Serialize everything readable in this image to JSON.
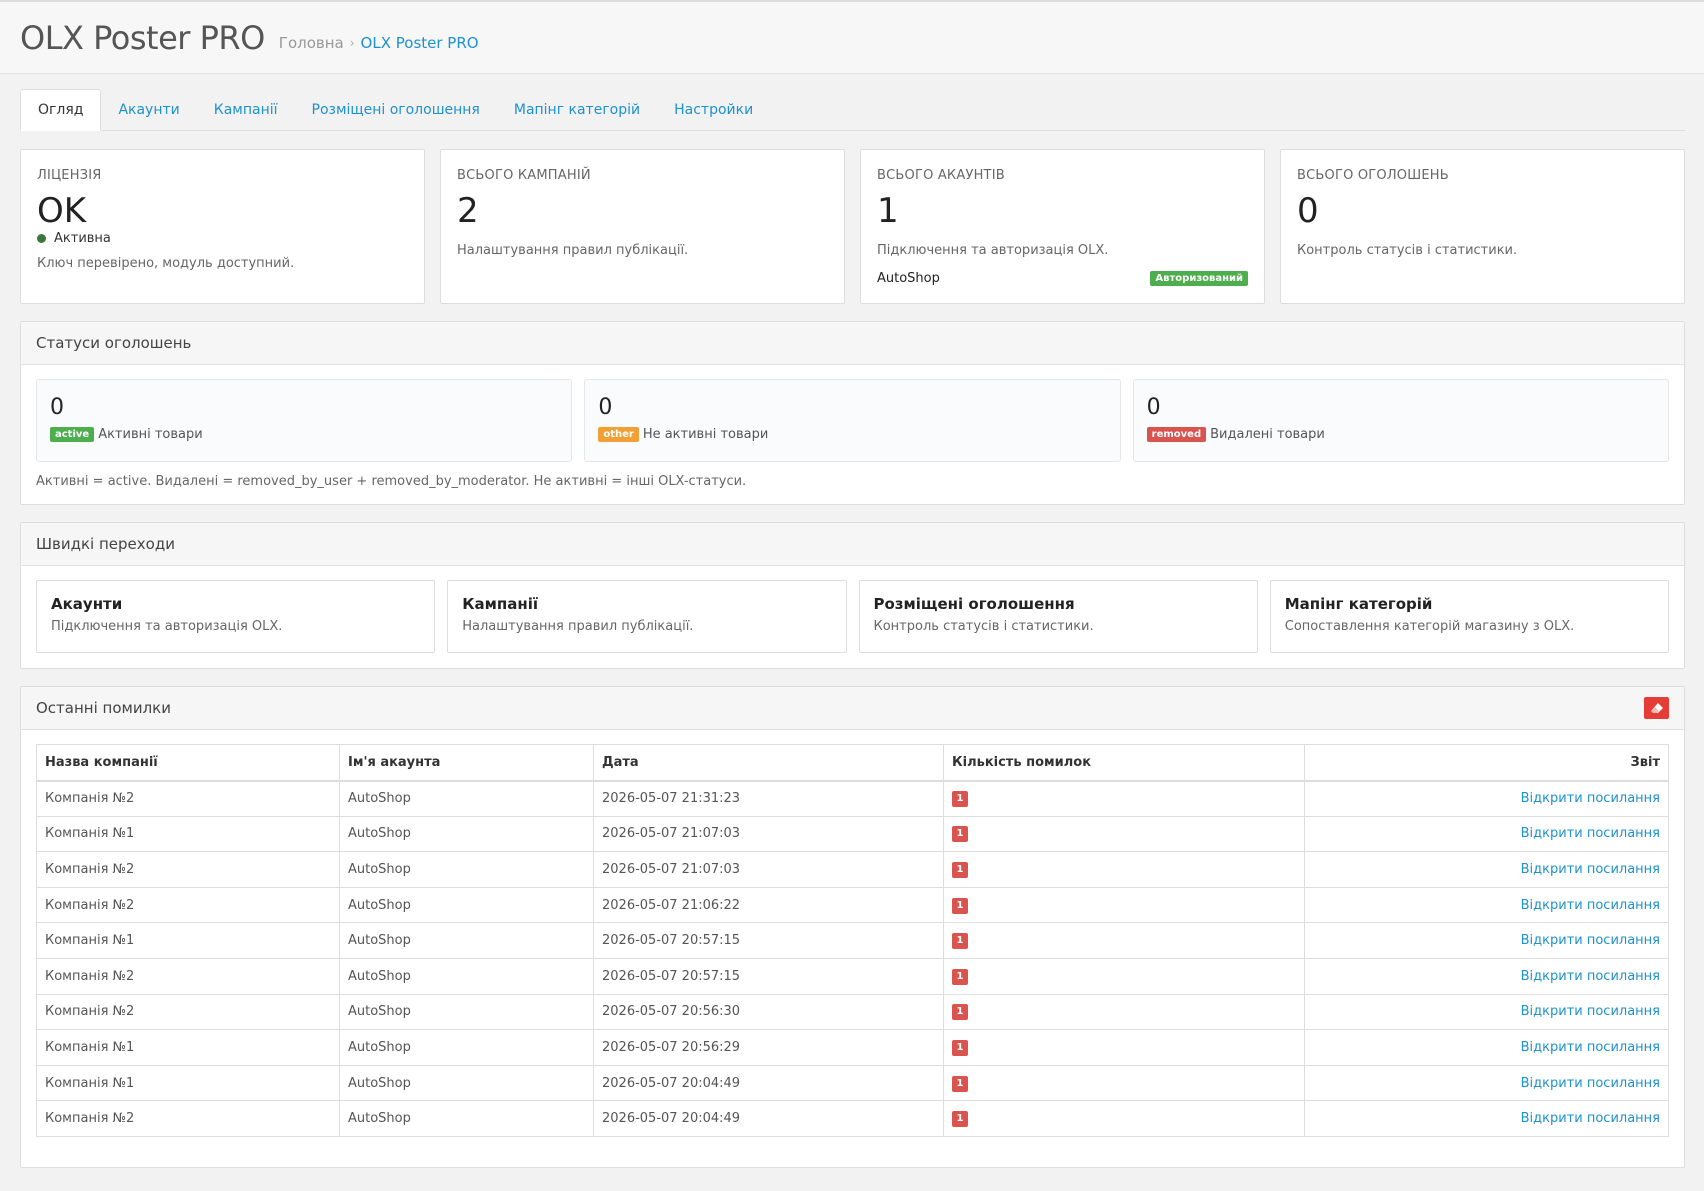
{
  "header": {
    "title": "OLX Poster PRO",
    "breadcrumb": [
      {
        "label": "Головна"
      },
      {
        "label": "OLX Poster PRO"
      }
    ],
    "breadcrumb_sep": "›"
  },
  "tabs": [
    {
      "label": "Огляд",
      "active": true
    },
    {
      "label": "Акаунти"
    },
    {
      "label": "Кампанії"
    },
    {
      "label": "Розміщені оголошення"
    },
    {
      "label": "Мапінг категорій"
    },
    {
      "label": "Настройки"
    }
  ],
  "stats": {
    "license": {
      "label": "Ліцензія",
      "value": "OK",
      "status": "Активна",
      "note": "Ключ перевірено, модуль доступний.",
      "status_color": "#3c763d"
    },
    "campaigns": {
      "label": "Всього кампаній",
      "value": "2",
      "sub": "Налаштування правил публікації."
    },
    "accounts": {
      "label": "Всього акаунтів",
      "value": "1",
      "sub": "Підключення та авторизація OLX.",
      "account_name": "AutoShop",
      "badge": "Авторизований"
    },
    "ads": {
      "label": "Всього оголошень",
      "value": "0",
      "sub": "Контроль статусів і статистики."
    }
  },
  "statuses": {
    "title": "Статуси оголошень",
    "items": [
      {
        "value": "0",
        "badge": "active",
        "label": "Активні товари",
        "color": "#4cae4c"
      },
      {
        "value": "0",
        "badge": "other",
        "label": "Не активні товари",
        "color": "#f0a034"
      },
      {
        "value": "0",
        "badge": "removed",
        "label": "Видалені товари",
        "color": "#d9534f"
      }
    ],
    "note": "Активні = active. Видалені = removed_by_user + removed_by_moderator. Не активні = інші OLX-статуси."
  },
  "quick": {
    "title": "Швидкі переходи",
    "items": [
      {
        "title": "Акаунти",
        "sub": "Підключення та авторизація OLX."
      },
      {
        "title": "Кампанії",
        "sub": "Налаштування правил публікації."
      },
      {
        "title": "Розміщені оголошення",
        "sub": "Контроль статусів і статистики."
      },
      {
        "title": "Мапінг категорій",
        "sub": "Сопоставлення категорій магазину з OLX."
      }
    ]
  },
  "errors": {
    "title": "Останні помилки",
    "clear_icon": "eraser-icon",
    "columns": [
      "Назва компанії",
      "Ім'я акаунта",
      "Дата",
      "Кількість помилок",
      "Звіт"
    ],
    "rows": [
      {
        "campaign": "Компанія №2",
        "account": "AutoShop",
        "date": "2026-05-07 21:31:23",
        "count": "1",
        "link": "Відкрити посилання"
      },
      {
        "campaign": "Компанія №1",
        "account": "AutoShop",
        "date": "2026-05-07 21:07:03",
        "count": "1",
        "link": "Відкрити посилання"
      },
      {
        "campaign": "Компанія №2",
        "account": "AutoShop",
        "date": "2026-05-07 21:07:03",
        "count": "1",
        "link": "Відкрити посилання"
      },
      {
        "campaign": "Компанія №2",
        "account": "AutoShop",
        "date": "2026-05-07 21:06:22",
        "count": "1",
        "link": "Відкрити посилання"
      },
      {
        "campaign": "Компанія №1",
        "account": "AutoShop",
        "date": "2026-05-07 20:57:15",
        "count": "1",
        "link": "Відкрити посилання"
      },
      {
        "campaign": "Компанія №2",
        "account": "AutoShop",
        "date": "2026-05-07 20:57:15",
        "count": "1",
        "link": "Відкрити посилання"
      },
      {
        "campaign": "Компанія №2",
        "account": "AutoShop",
        "date": "2026-05-07 20:56:30",
        "count": "1",
        "link": "Відкрити посилання"
      },
      {
        "campaign": "Компанія №1",
        "account": "AutoShop",
        "date": "2026-05-07 20:56:29",
        "count": "1",
        "link": "Відкрити посилання"
      },
      {
        "campaign": "Компанія №1",
        "account": "AutoShop",
        "date": "2026-05-07 20:04:49",
        "count": "1",
        "link": "Відкрити посилання"
      },
      {
        "campaign": "Компанія №2",
        "account": "AutoShop",
        "date": "2026-05-07 20:04:49",
        "count": "1",
        "link": "Відкрити посилання"
      }
    ]
  }
}
